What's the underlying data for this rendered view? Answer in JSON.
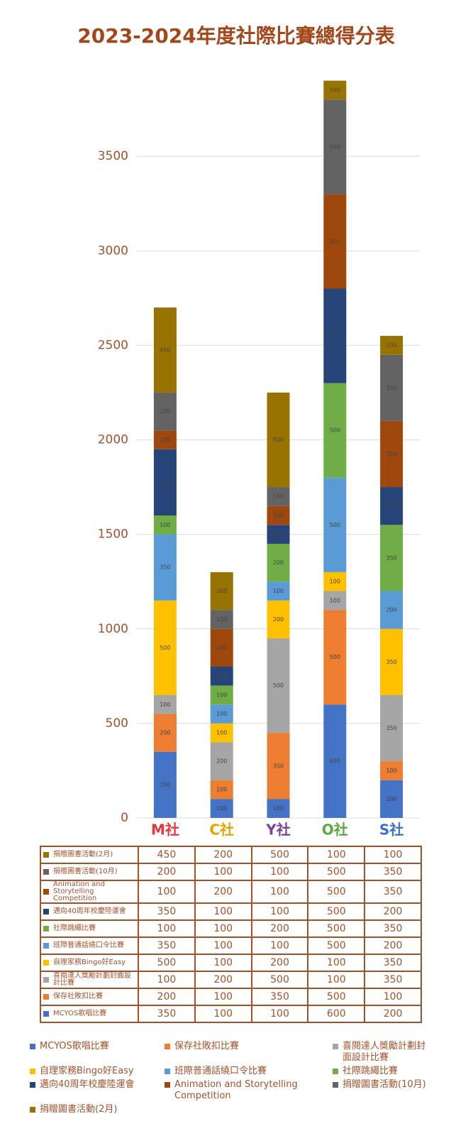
{
  "chart_data": {
    "type": "stacked_bar",
    "title": "2023-2024年度社際比賽總得分表",
    "categories": [
      "M社",
      "C社",
      "Y社",
      "O社",
      "S社"
    ],
    "category_colors": [
      "#e8363f",
      "#e6a400",
      "#7b3fa0",
      "#5aa844",
      "#3f6fd1"
    ],
    "ylim": [
      0,
      4000
    ],
    "yticks": [
      0,
      500,
      1000,
      1500,
      2000,
      2500,
      3000,
      3500
    ],
    "grid": true,
    "series": [
      {
        "name": "MCYOS歌唱比賽",
        "color": "#4472c4",
        "values": [
          350,
          100,
          100,
          600,
          200
        ]
      },
      {
        "name": "保存社敗扣比賽",
        "color": "#ed7d31",
        "values": [
          200,
          100,
          350,
          500,
          100
        ]
      },
      {
        "name": "喜閱達人獎勵計劃封面設計比賽",
        "color": "#a5a5a5",
        "values": [
          100,
          200,
          500,
          100,
          350
        ]
      },
      {
        "name": "自理家務Bingo好Easy",
        "color": "#ffc000",
        "values": [
          500,
          100,
          200,
          100,
          350
        ]
      },
      {
        "name": "班際普通話繞口令比賽",
        "color": "#5b9bd5",
        "values": [
          350,
          100,
          100,
          500,
          200
        ]
      },
      {
        "name": "社際跳繩比賽",
        "color": "#70ad47",
        "values": [
          100,
          100,
          200,
          500,
          350
        ]
      },
      {
        "name": "邁向40周年校慶陸運會",
        "color": "#264478",
        "values": [
          350,
          100,
          100,
          500,
          200
        ]
      },
      {
        "name": "Animation and Storytelling Competition",
        "color": "#9e480e",
        "values": [
          100,
          200,
          100,
          500,
          350
        ]
      },
      {
        "name": "捐贈圖書活動(10月)",
        "color": "#636363",
        "values": [
          200,
          100,
          100,
          500,
          350
        ]
      },
      {
        "name": "捐贈圖書活動(2月)",
        "color": "#997300",
        "values": [
          450,
          200,
          500,
          100,
          100
        ]
      }
    ]
  }
}
